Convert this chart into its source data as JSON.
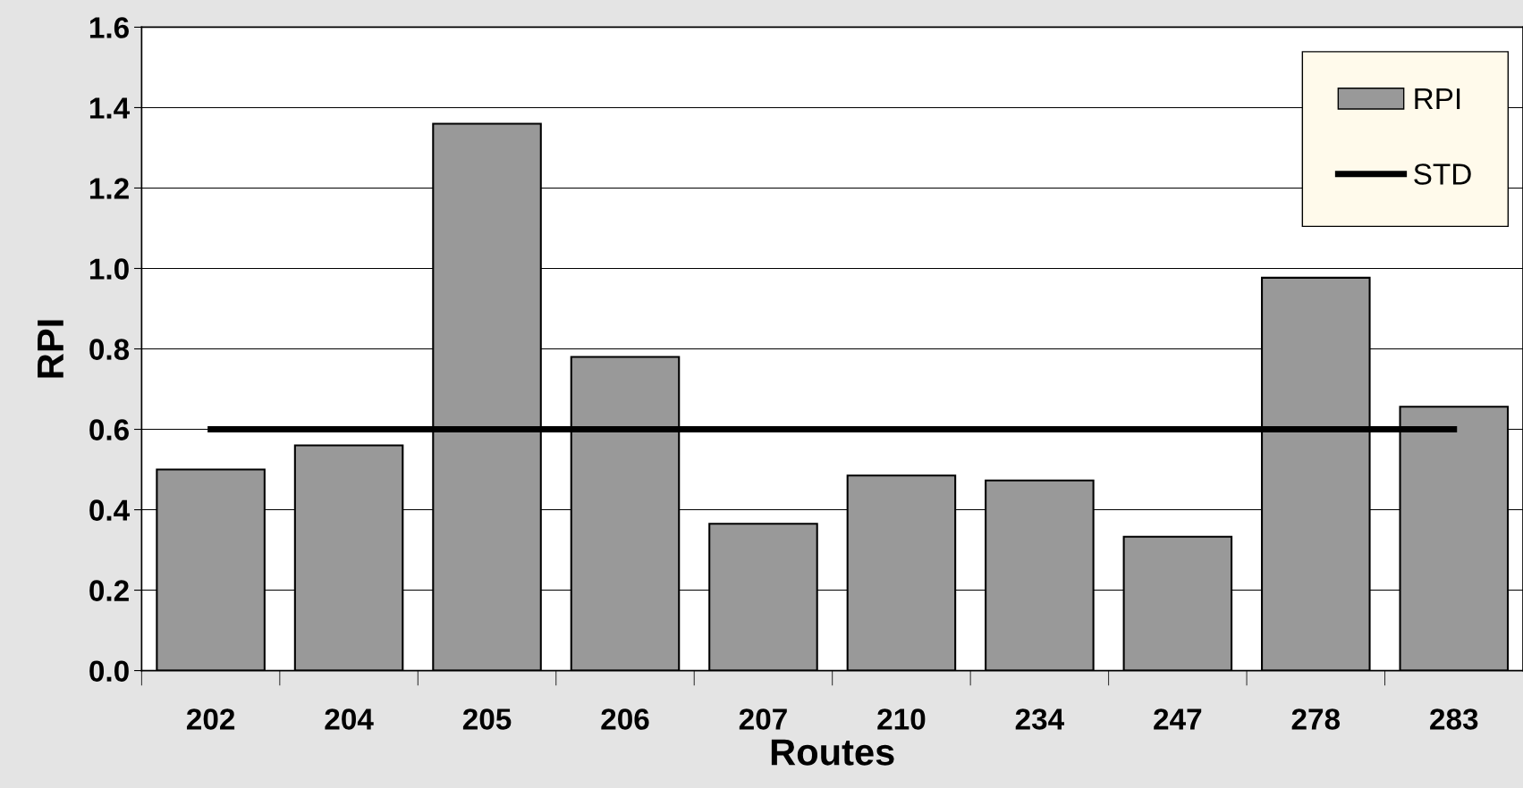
{
  "chart_data": {
    "type": "bar",
    "xlabel": "Routes",
    "ylabel": "RPI",
    "categories": [
      "202",
      "204",
      "205",
      "206",
      "207",
      "210",
      "234",
      "247",
      "278",
      "283"
    ],
    "series": [
      {
        "name": "RPI",
        "color": "#999999",
        "values": [
          0.5,
          0.56,
          1.36,
          0.78,
          0.365,
          0.485,
          0.473,
          0.333,
          0.977,
          0.656
        ]
      },
      {
        "name": "STD",
        "type": "line",
        "color": "#000000",
        "values": [
          0.6,
          0.6,
          0.6,
          0.6,
          0.6,
          0.6,
          0.6,
          0.6,
          0.6,
          0.6
        ]
      }
    ],
    "ylim": [
      0,
      1.6
    ],
    "yticks": [
      {
        "value": 0,
        "label": "0.0"
      },
      0.2,
      0.4,
      0.6,
      0.8,
      {
        "value": 1,
        "label": "1.0"
      },
      1.2,
      1.4,
      1.6
    ],
    "grid": "y",
    "legend": "top right"
  }
}
